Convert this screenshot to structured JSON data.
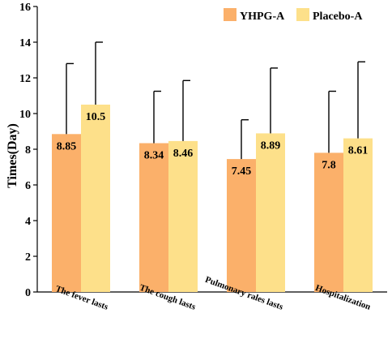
{
  "chart_data": {
    "type": "bar",
    "ylabel": "Times(Day)",
    "ylim": [
      0,
      16
    ],
    "yticks": [
      0,
      2,
      4,
      6,
      8,
      10,
      12,
      14,
      16
    ],
    "categories": [
      "The fever lasts",
      "The cough lasts",
      "Pulmonary rales lasts",
      "Hospitalization"
    ],
    "series": [
      {
        "name": "YHPG-A",
        "color": "#FBB06A",
        "values": [
          8.85,
          8.34,
          7.45,
          7.8
        ],
        "labels": [
          "8.85",
          "8.34",
          "7.45",
          "7.8"
        ],
        "error_upper": [
          12.8,
          11.25,
          9.65,
          11.25
        ]
      },
      {
        "name": "Placebo-A",
        "color": "#FDE08A",
        "values": [
          10.5,
          8.46,
          8.89,
          8.61
        ],
        "labels": [
          "10.5",
          "8.46",
          "8.89",
          "8.61"
        ],
        "error_upper": [
          14.0,
          11.85,
          12.55,
          12.9
        ]
      }
    ],
    "legend": "top-right",
    "grid": false
  }
}
